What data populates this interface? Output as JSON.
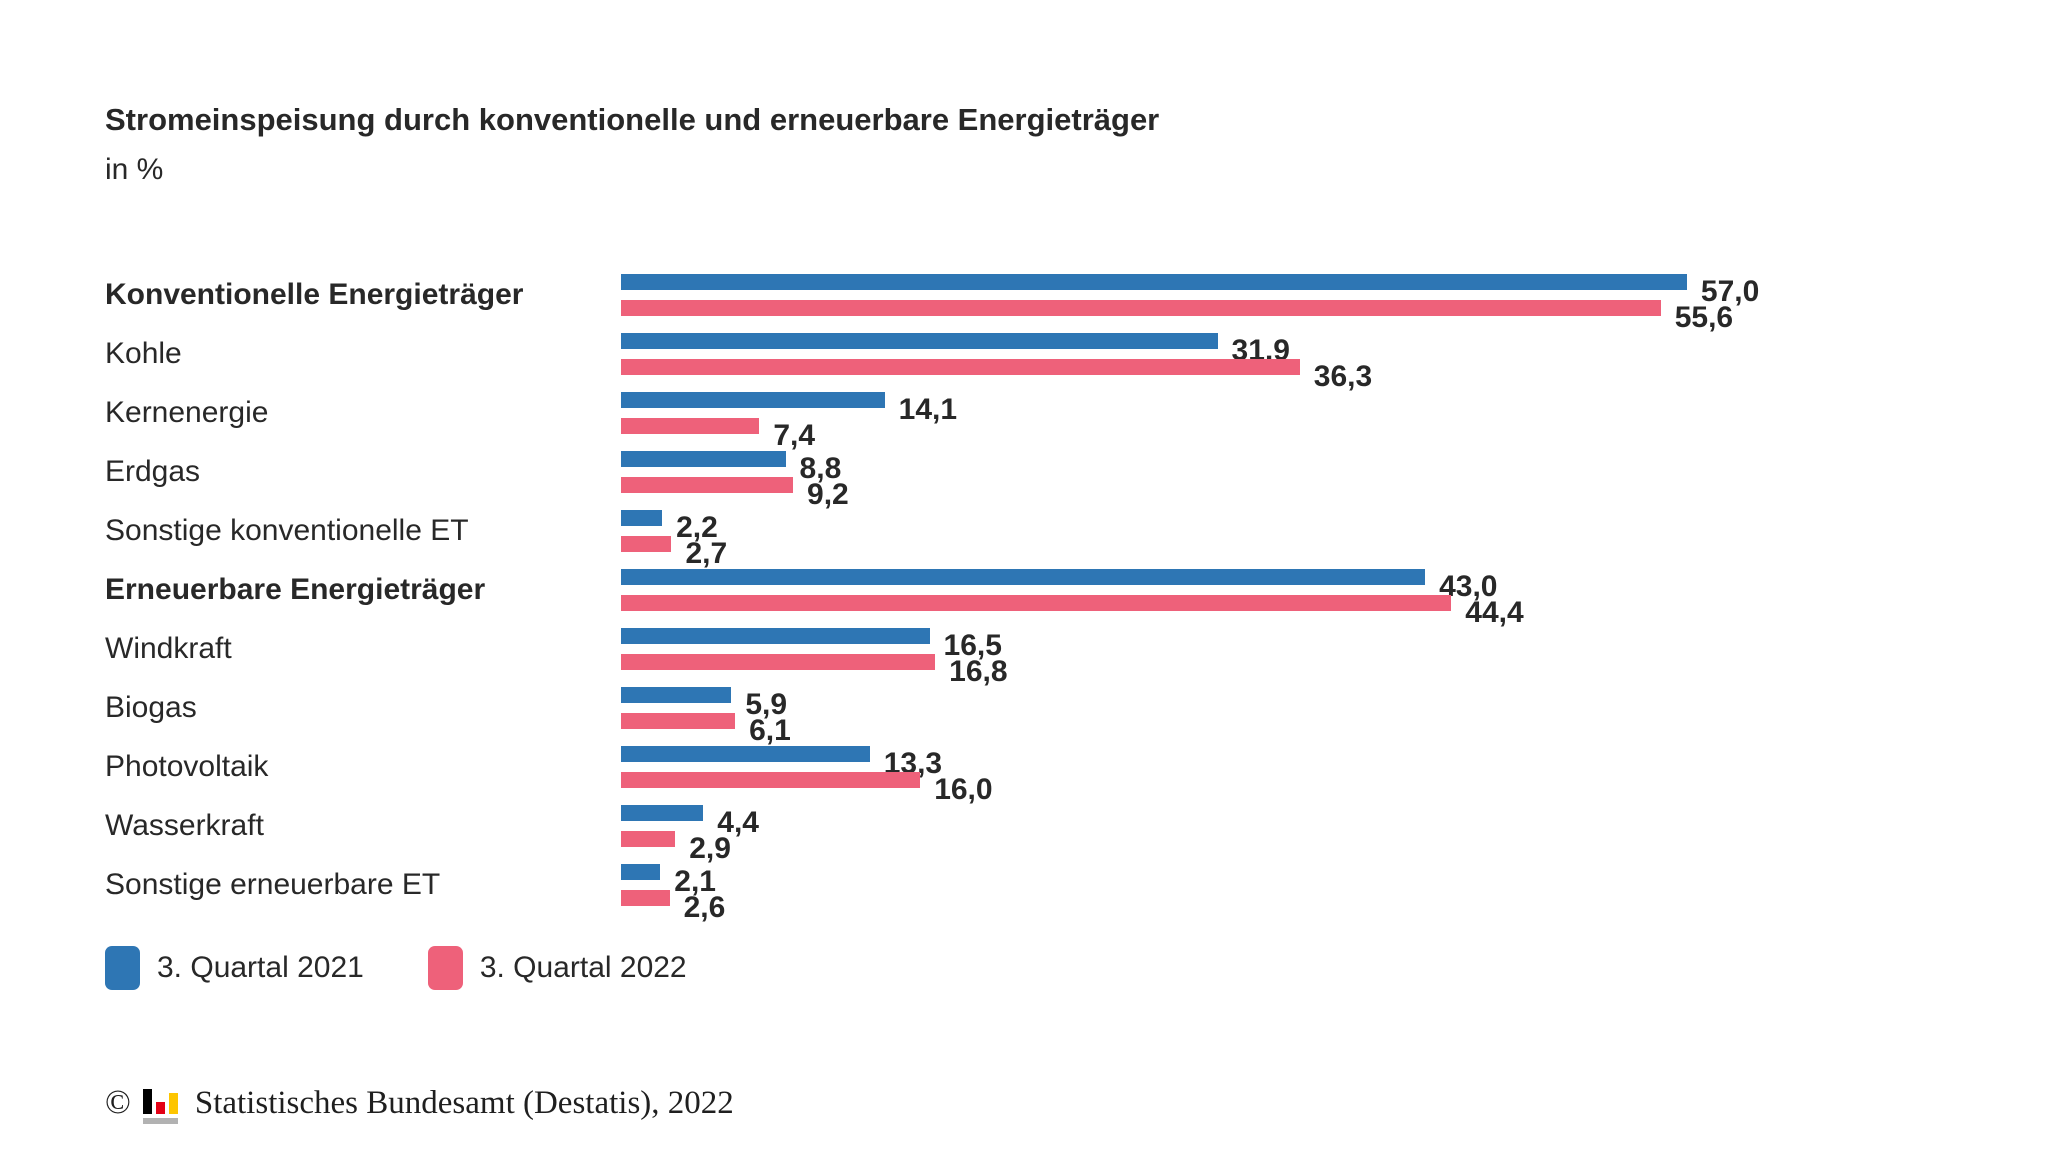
{
  "header": {
    "title": "Stromeinspeisung durch konventionelle und erneuerbare Energieträger",
    "subtitle": "in %"
  },
  "chart_data": {
    "type": "bar",
    "orientation": "horizontal",
    "unit": "%",
    "title": "Stromeinspeisung durch konventionelle und erneuerbare Energieträger",
    "xlabel": "",
    "ylabel": "",
    "xlim": [
      0,
      60
    ],
    "grid": false,
    "legend_position": "bottom",
    "categories": [
      "Konventionelle Energieträger",
      "Kohle",
      "Kernenergie",
      "Erdgas",
      "Sonstige konventionelle ET",
      "Erneuerbare Energieträger",
      "Windkraft",
      "Biogas",
      "Photovoltaik",
      "Wasserkraft",
      "Sonstige erneuerbare ET"
    ],
    "bold_flags": [
      true,
      false,
      false,
      false,
      false,
      true,
      false,
      false,
      false,
      false,
      false
    ],
    "series": [
      {
        "name": "3. Quartal 2021",
        "color": "#2e76b4",
        "values": [
          57.0,
          31.9,
          14.1,
          8.8,
          2.2,
          43.0,
          16.5,
          5.9,
          13.3,
          4.4,
          2.1
        ],
        "display": [
          "57,0",
          "31,9",
          "14,1",
          "8,8",
          "2,2",
          "43,0",
          "16,5",
          "5,9",
          "13,3",
          "4,4",
          "2,1"
        ]
      },
      {
        "name": "3. Quartal 2022",
        "color": "#ee617a",
        "values": [
          55.6,
          36.3,
          7.4,
          9.2,
          2.7,
          44.4,
          16.8,
          6.1,
          16.0,
          2.9,
          2.6
        ],
        "display": [
          "55,6",
          "36,3",
          "7,4",
          "9,2",
          "2,7",
          "44,4",
          "16,8",
          "6,1",
          "16,0",
          "2,9",
          "2,6"
        ]
      }
    ]
  },
  "footer": {
    "copyright": "©",
    "source": "Statistisches Bundesamt (Destatis), 2022"
  },
  "colors": {
    "series_2021": "#2e76b4",
    "series_2022": "#ee617a",
    "text": "#282828",
    "logo_black": "#000000",
    "logo_red": "#e30015",
    "logo_gold": "#fdc500",
    "logo_gray": "#b2b2b2"
  }
}
